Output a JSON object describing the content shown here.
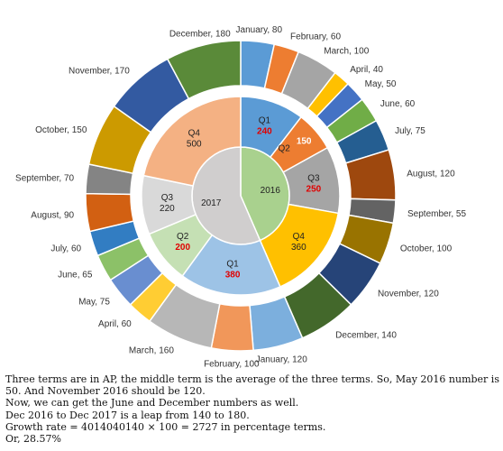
{
  "chart_data": {
    "type": "sunburst",
    "center": [
      {
        "name": "2016",
        "color": "#a9d18e"
      },
      {
        "name": "2017",
        "color": "#d0cece"
      }
    ],
    "quarters": [
      {
        "name": "Q1",
        "value": "240",
        "year": "2016",
        "color": "#5b9bd5",
        "value_color": "#e00000"
      },
      {
        "name": "Q2",
        "value": "150",
        "year": "2016",
        "color": "#ed7d31",
        "value_color": "#ffffff"
      },
      {
        "name": "Q3",
        "value": "250",
        "year": "2016",
        "color": "#a5a5a5",
        "value_color": "#e00000"
      },
      {
        "name": "Q4",
        "value": "360",
        "year": "2016",
        "color": "#ffc000",
        "value_color": "#222222"
      },
      {
        "name": "Q1",
        "value": "380",
        "year": "2017",
        "color": "#9dc3e6",
        "value_color": "#e00000"
      },
      {
        "name": "Q2",
        "value": "200",
        "year": "2017",
        "color": "#c5e0b4",
        "value_color": "#e00000"
      },
      {
        "name": "Q3",
        "value": "220",
        "year": "2017",
        "color": "#d9d9d9",
        "value_color": "#333333"
      },
      {
        "name": "Q4",
        "value": "500",
        "year": "2017",
        "color": "#f4b183",
        "value_color": "#333333"
      }
    ],
    "months_2016": [
      {
        "name": "January",
        "value": "80",
        "color": "#5b9bd5"
      },
      {
        "name": "February",
        "value": "60",
        "color": "#ed7d31"
      },
      {
        "name": "March",
        "value": "100",
        "color": "#a5a5a5"
      },
      {
        "name": "April",
        "value": "40",
        "color": "#ffc000"
      },
      {
        "name": "May",
        "value": "50",
        "color": "#4472c4"
      },
      {
        "name": "June",
        "value": "60",
        "color": "#70ad47"
      },
      {
        "name": "July",
        "value": "75",
        "color": "#255e91"
      },
      {
        "name": "August",
        "value": "120",
        "color": "#9e480e"
      },
      {
        "name": "September",
        "value": "55",
        "color": "#636363"
      },
      {
        "name": "October",
        "value": "100",
        "color": "#997300"
      },
      {
        "name": "November",
        "value": "120",
        "color": "#264478"
      },
      {
        "name": "December",
        "value": "140",
        "color": "#43682b"
      }
    ],
    "months_2017": [
      {
        "name": "January",
        "value": "120",
        "color": "#7cafdd"
      },
      {
        "name": "February",
        "value": "100",
        "color": "#f1975a"
      },
      {
        "name": "March",
        "value": "160",
        "color": "#b7b7b7"
      },
      {
        "name": "April",
        "value": "60",
        "color": "#ffcd33"
      },
      {
        "name": "May",
        "value": "75",
        "color": "#698ed0"
      },
      {
        "name": "June",
        "value": "65",
        "color": "#8cc168"
      },
      {
        "name": "July",
        "value": "60",
        "color": "#327dc2"
      },
      {
        "name": "August",
        "value": "90",
        "color": "#d26012"
      },
      {
        "name": "September",
        "value": "70",
        "color": "#848484"
      },
      {
        "name": "October",
        "value": "150",
        "color": "#cc9a00"
      },
      {
        "name": "November",
        "value": "170",
        "color": "#335aa1"
      },
      {
        "name": "December",
        "value": "180",
        "color": "#5a8a39"
      }
    ]
  },
  "solution": {
    "line1": "Three terms are in AP, the middle term is the average of the three terms. So, May 2016 number is 50. And November 2016 should be 120.",
    "line2": "Now, we can get the June and December numbers as well.",
    "line3": "Dec 2016 to Dec 2017 is a leap from 140 to 180.",
    "line4": "Growth rate = 4014040140 × 100 = 2727 in percentage terms.",
    "line5": "Or, 28.57%"
  }
}
